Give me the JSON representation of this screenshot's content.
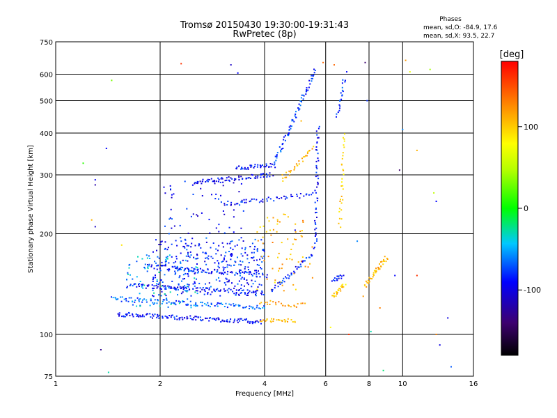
{
  "chart_data": {
    "type": "scatter",
    "title": "Tromsø 20150430 19:30:00-19:31:43",
    "subtitle": "RwPretec (8p)",
    "xlabel": "Frequency [MHz]",
    "ylabel": "Stationary phase Virtual Height [km]",
    "x_scale": "log",
    "y_scale": "log",
    "xlim": [
      1,
      16
    ],
    "ylim": [
      75,
      750
    ],
    "x_ticks": [
      1,
      2,
      4,
      6,
      8,
      10,
      16
    ],
    "x_tick_labels": [
      "1",
      "2",
      "4",
      "6",
      "8",
      "10",
      "16"
    ],
    "y_ticks": [
      75,
      100,
      200,
      300,
      400,
      500,
      600,
      750
    ],
    "y_tick_labels": [
      "75",
      "100",
      "200",
      "300",
      "400",
      "500",
      "600",
      "750"
    ],
    "grid": true,
    "phase_info": {
      "title": "Phases",
      "o_line": "mean, sd,O: -84.9, 17.6",
      "x_line": "mean, sd,X:  93.5, 22.7"
    },
    "colorbar": {
      "label": "[deg]",
      "range": [
        -180,
        180
      ],
      "ticks": [
        100,
        0,
        -100
      ],
      "tick_labels": [
        "100",
        "0",
        "-100"
      ]
    },
    "traces": [
      {
        "x0": 1.5,
        "x1": 3.9,
        "y0": 115,
        "y1": 109,
        "phase": -90,
        "n": 130
      },
      {
        "x0": 1.45,
        "x1": 4.0,
        "y0": 128,
        "y1": 120,
        "phase": -70,
        "n": 110
      },
      {
        "x0": 1.6,
        "x1": 4.0,
        "y0": 140,
        "y1": 133,
        "phase": -90,
        "n": 90
      },
      {
        "x0": 1.8,
        "x1": 4.1,
        "y0": 160,
        "y1": 150,
        "phase": -85,
        "n": 80
      },
      {
        "x0": 2.5,
        "x1": 4.2,
        "y0": 285,
        "y1": 300,
        "phase": -95,
        "n": 70
      },
      {
        "x0": 3.3,
        "x1": 4.3,
        "y0": 315,
        "y1": 320,
        "phase": -90,
        "n": 40
      },
      {
        "x0": 4.3,
        "x1": 5.6,
        "y0": 330,
        "y1": 620,
        "phase": -80,
        "n": 70
      },
      {
        "x0": 3.0,
        "x1": 5.5,
        "y0": 245,
        "y1": 262,
        "phase": -90,
        "n": 50
      },
      {
        "x0": 4.2,
        "x1": 5.5,
        "y0": 135,
        "y1": 175,
        "phase": -85,
        "n": 40
      },
      {
        "x0": 3.9,
        "x1": 4.9,
        "y0": 110,
        "y1": 110,
        "phase": 110,
        "n": 25
      },
      {
        "x0": 3.9,
        "x1": 5.2,
        "y0": 125,
        "y1": 122,
        "phase": 120,
        "n": 25
      },
      {
        "x0": 4.5,
        "x1": 5.5,
        "y0": 290,
        "y1": 360,
        "phase": 110,
        "n": 30
      },
      {
        "x0": 5.6,
        "x1": 5.7,
        "y0": 180,
        "y1": 420,
        "phase": -90,
        "n": 50
      },
      {
        "x0": 6.3,
        "x1": 6.8,
        "y0": 130,
        "y1": 140,
        "phase": 100,
        "n": 25
      },
      {
        "x0": 6.6,
        "x1": 6.8,
        "y0": 210,
        "y1": 400,
        "phase": 100,
        "n": 30
      },
      {
        "x0": 6.5,
        "x1": 6.8,
        "y0": 450,
        "y1": 580,
        "phase": -80,
        "n": 20
      },
      {
        "x0": 7.8,
        "x1": 9.0,
        "y0": 140,
        "y1": 170,
        "phase": 110,
        "n": 40
      },
      {
        "x0": 6.3,
        "x1": 6.7,
        "y0": 145,
        "y1": 150,
        "phase": -90,
        "n": 15
      }
    ],
    "clusters": [
      {
        "x0": 1.9,
        "x1": 4.0,
        "y0": 130,
        "y1": 195,
        "phase": -85,
        "n": 350
      },
      {
        "x0": 1.6,
        "x1": 2.6,
        "y0": 120,
        "y1": 175,
        "phase": -50,
        "n": 90
      },
      {
        "x0": 3.8,
        "x1": 5.5,
        "y0": 135,
        "y1": 230,
        "phase": 110,
        "n": 70
      },
      {
        "x0": 2.0,
        "x1": 3.5,
        "y0": 200,
        "y1": 290,
        "phase": -90,
        "n": 60
      }
    ],
    "scatter": [
      [
        1.2,
        325,
        10
      ],
      [
        1.3,
        290,
        -95
      ],
      [
        1.3,
        280,
        -120
      ],
      [
        1.27,
        220,
        110
      ],
      [
        1.3,
        210,
        -110
      ],
      [
        1.35,
        90,
        -130
      ],
      [
        1.45,
        575,
        30
      ],
      [
        1.4,
        360,
        -90
      ],
      [
        1.55,
        185,
        90
      ],
      [
        1.42,
        77,
        -30
      ],
      [
        2.3,
        645,
        160
      ],
      [
        3.2,
        640,
        -110
      ],
      [
        3.35,
        605,
        -90
      ],
      [
        5.9,
        650,
        140
      ],
      [
        6.35,
        640,
        140
      ],
      [
        6.9,
        610,
        -90
      ],
      [
        7.8,
        650,
        -140
      ],
      [
        7.7,
        130,
        120
      ],
      [
        7.9,
        500,
        -80
      ],
      [
        10.2,
        660,
        120
      ],
      [
        10.5,
        610,
        70
      ],
      [
        12.0,
        620,
        40
      ],
      [
        10.0,
        410,
        -60
      ],
      [
        9.8,
        310,
        -140
      ],
      [
        11.0,
        355,
        110
      ],
      [
        12.3,
        265,
        50
      ],
      [
        12.5,
        250,
        -90
      ],
      [
        13.5,
        112,
        -100
      ],
      [
        13.8,
        80,
        -70
      ],
      [
        12.5,
        100,
        130
      ],
      [
        11.0,
        150,
        160
      ],
      [
        12.8,
        93,
        -100
      ],
      [
        8.8,
        78,
        -20
      ],
      [
        8.6,
        120,
        130
      ],
      [
        9.5,
        150,
        -90
      ],
      [
        7.0,
        100,
        160
      ],
      [
        6.2,
        105,
        80
      ],
      [
        4.9,
        205,
        -100
      ],
      [
        4.5,
        300,
        110
      ],
      [
        5.1,
        435,
        110
      ],
      [
        7.4,
        190,
        -60
      ],
      [
        8.1,
        102,
        -30
      ],
      [
        6.6,
        250,
        120
      ]
    ]
  }
}
